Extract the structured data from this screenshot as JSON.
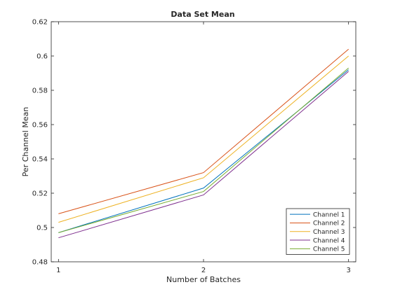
{
  "chart_data": {
    "type": "line",
    "title": "Data Set Mean",
    "xlabel": "Number of Batches",
    "ylabel": "Per Channel Mean",
    "x": [
      1,
      2,
      3
    ],
    "xticks": [
      "1",
      "2",
      "3"
    ],
    "xlim": [
      0.95,
      3.05
    ],
    "ylim": [
      0.48,
      0.62
    ],
    "yticks": [
      "0.48",
      "0.5",
      "0.52",
      "0.54",
      "0.56",
      "0.58",
      "0.6",
      "0.62"
    ],
    "grid": false,
    "legend_position": "bottom-right",
    "series": [
      {
        "name": "Channel 1",
        "color": "#0072BD",
        "values": [
          0.497,
          0.523,
          0.592
        ]
      },
      {
        "name": "Channel 2",
        "color": "#D95319",
        "values": [
          0.508,
          0.532,
          0.604
        ]
      },
      {
        "name": "Channel 3",
        "color": "#EDB120",
        "values": [
          0.503,
          0.529,
          0.6
        ]
      },
      {
        "name": "Channel 4",
        "color": "#7E2F8E",
        "values": [
          0.494,
          0.519,
          0.591
        ]
      },
      {
        "name": "Channel 5",
        "color": "#77AC30",
        "values": [
          0.497,
          0.521,
          0.593
        ]
      }
    ]
  }
}
